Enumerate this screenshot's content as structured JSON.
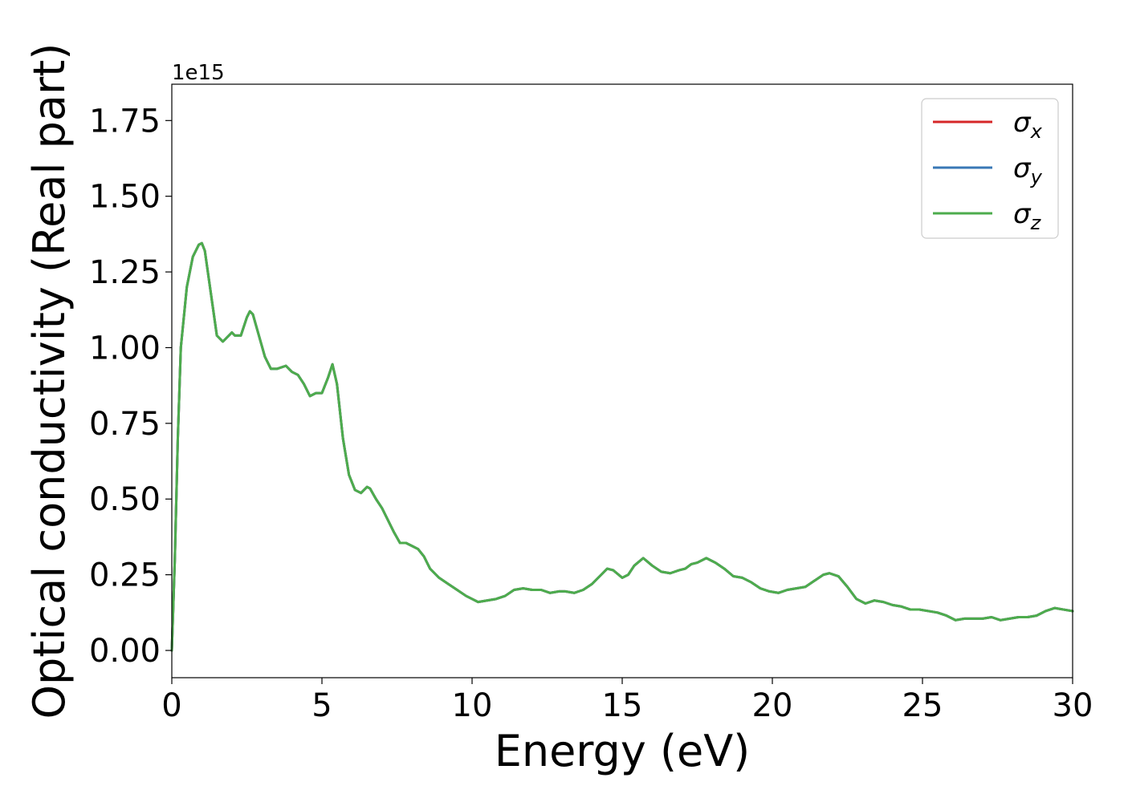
{
  "chart_data": {
    "type": "line",
    "title": "",
    "xlabel": "Energy (eV)",
    "ylabel": "Optical conductivity (Real part)",
    "y_offset_label": "1e15",
    "xlim": [
      0,
      30
    ],
    "ylim": [
      -0.09,
      1.87
    ],
    "xticks": [
      0,
      5,
      10,
      15,
      20,
      25,
      30
    ],
    "xtick_labels": [
      "0",
      "5",
      "10",
      "15",
      "20",
      "25",
      "30"
    ],
    "yticks": [
      0.0,
      0.25,
      0.5,
      0.75,
      1.0,
      1.25,
      1.5,
      1.75
    ],
    "ytick_labels": [
      "0.00",
      "0.25",
      "0.50",
      "0.75",
      "1.00",
      "1.25",
      "1.50",
      "1.75"
    ],
    "grid": false,
    "legend_position": "top-right",
    "legend": [
      {
        "base": "σ",
        "sub": "x",
        "color": "#d62728"
      },
      {
        "base": "σ",
        "sub": "y",
        "color": "#3a78b6"
      },
      {
        "base": "σ",
        "sub": "z",
        "color": "#4dac4d"
      }
    ],
    "x": [
      0,
      0.1,
      0.2,
      0.3,
      0.5,
      0.7,
      0.9,
      1.0,
      1.1,
      1.3,
      1.5,
      1.7,
      1.8,
      2.0,
      2.1,
      2.3,
      2.5,
      2.6,
      2.7,
      2.9,
      3.1,
      3.3,
      3.5,
      3.8,
      4.0,
      4.2,
      4.4,
      4.6,
      4.8,
      5.0,
      5.2,
      5.35,
      5.5,
      5.7,
      5.9,
      6.1,
      6.3,
      6.5,
      6.6,
      6.8,
      7.0,
      7.2,
      7.4,
      7.6,
      7.8,
      8.0,
      8.2,
      8.4,
      8.6,
      8.9,
      9.2,
      9.5,
      9.8,
      10.0,
      10.2,
      10.5,
      10.8,
      11.1,
      11.4,
      11.7,
      12.0,
      12.3,
      12.6,
      12.9,
      13.1,
      13.4,
      13.7,
      14.0,
      14.3,
      14.5,
      14.7,
      15.0,
      15.2,
      15.4,
      15.7,
      16.0,
      16.3,
      16.6,
      16.9,
      17.1,
      17.3,
      17.5,
      17.8,
      18.1,
      18.4,
      18.7,
      19.0,
      19.3,
      19.6,
      19.9,
      20.2,
      20.5,
      20.8,
      21.1,
      21.4,
      21.7,
      21.9,
      22.2,
      22.5,
      22.8,
      23.1,
      23.4,
      23.7,
      24.0,
      24.3,
      24.6,
      24.9,
      25.2,
      25.5,
      25.8,
      26.1,
      26.4,
      26.7,
      27.0,
      27.3,
      27.6,
      27.9,
      28.2,
      28.5,
      28.8,
      29.1,
      29.4,
      29.7,
      30.0
    ],
    "series": [
      {
        "name": "σx",
        "color": "#d62728",
        "values": [
          0.0,
          0.3,
          0.7,
          1.0,
          1.2,
          1.3,
          1.34,
          1.345,
          1.32,
          1.18,
          1.04,
          1.02,
          1.03,
          1.05,
          1.04,
          1.04,
          1.1,
          1.12,
          1.11,
          1.04,
          0.97,
          0.93,
          0.93,
          0.94,
          0.92,
          0.91,
          0.88,
          0.84,
          0.85,
          0.85,
          0.9,
          0.945,
          0.88,
          0.7,
          0.58,
          0.53,
          0.52,
          0.54,
          0.535,
          0.5,
          0.47,
          0.43,
          0.39,
          0.355,
          0.355,
          0.345,
          0.335,
          0.31,
          0.27,
          0.24,
          0.22,
          0.2,
          0.18,
          0.17,
          0.16,
          0.165,
          0.17,
          0.18,
          0.2,
          0.205,
          0.2,
          0.2,
          0.19,
          0.195,
          0.195,
          0.19,
          0.2,
          0.22,
          0.25,
          0.27,
          0.265,
          0.24,
          0.25,
          0.28,
          0.305,
          0.28,
          0.26,
          0.255,
          0.265,
          0.27,
          0.285,
          0.29,
          0.305,
          0.29,
          0.27,
          0.245,
          0.24,
          0.225,
          0.205,
          0.195,
          0.19,
          0.2,
          0.205,
          0.21,
          0.23,
          0.25,
          0.255,
          0.245,
          0.21,
          0.17,
          0.155,
          0.165,
          0.16,
          0.15,
          0.145,
          0.135,
          0.135,
          0.13,
          0.125,
          0.115,
          0.1,
          0.105,
          0.105,
          0.105,
          0.11,
          0.1,
          0.105,
          0.11,
          0.11,
          0.115,
          0.13,
          0.14,
          0.135,
          0.13
        ]
      },
      {
        "name": "σy",
        "color": "#3a78b6",
        "values": [
          0.0,
          0.3,
          0.7,
          1.0,
          1.2,
          1.3,
          1.34,
          1.345,
          1.32,
          1.18,
          1.04,
          1.02,
          1.03,
          1.05,
          1.04,
          1.04,
          1.1,
          1.12,
          1.11,
          1.04,
          0.97,
          0.93,
          0.93,
          0.94,
          0.92,
          0.91,
          0.88,
          0.84,
          0.85,
          0.85,
          0.9,
          0.945,
          0.88,
          0.7,
          0.58,
          0.53,
          0.52,
          0.54,
          0.535,
          0.5,
          0.47,
          0.43,
          0.39,
          0.355,
          0.355,
          0.345,
          0.335,
          0.31,
          0.27,
          0.24,
          0.22,
          0.2,
          0.18,
          0.17,
          0.16,
          0.165,
          0.17,
          0.18,
          0.2,
          0.205,
          0.2,
          0.2,
          0.19,
          0.195,
          0.195,
          0.19,
          0.2,
          0.22,
          0.25,
          0.27,
          0.265,
          0.24,
          0.25,
          0.28,
          0.305,
          0.28,
          0.26,
          0.255,
          0.265,
          0.27,
          0.285,
          0.29,
          0.305,
          0.29,
          0.27,
          0.245,
          0.24,
          0.225,
          0.205,
          0.195,
          0.19,
          0.2,
          0.205,
          0.21,
          0.23,
          0.25,
          0.255,
          0.245,
          0.21,
          0.17,
          0.155,
          0.165,
          0.16,
          0.15,
          0.145,
          0.135,
          0.135,
          0.13,
          0.125,
          0.115,
          0.1,
          0.105,
          0.105,
          0.105,
          0.11,
          0.1,
          0.105,
          0.11,
          0.11,
          0.115,
          0.13,
          0.14,
          0.135,
          0.13
        ]
      },
      {
        "name": "σz",
        "color": "#4dac4d",
        "values": [
          0.0,
          0.3,
          0.7,
          1.0,
          1.2,
          1.3,
          1.34,
          1.345,
          1.32,
          1.18,
          1.04,
          1.02,
          1.03,
          1.05,
          1.04,
          1.04,
          1.1,
          1.12,
          1.11,
          1.04,
          0.97,
          0.93,
          0.93,
          0.94,
          0.92,
          0.91,
          0.88,
          0.84,
          0.85,
          0.85,
          0.9,
          0.945,
          0.88,
          0.7,
          0.58,
          0.53,
          0.52,
          0.54,
          0.535,
          0.5,
          0.47,
          0.43,
          0.39,
          0.355,
          0.355,
          0.345,
          0.335,
          0.31,
          0.27,
          0.24,
          0.22,
          0.2,
          0.18,
          0.17,
          0.16,
          0.165,
          0.17,
          0.18,
          0.2,
          0.205,
          0.2,
          0.2,
          0.19,
          0.195,
          0.195,
          0.19,
          0.2,
          0.22,
          0.25,
          0.27,
          0.265,
          0.24,
          0.25,
          0.28,
          0.305,
          0.28,
          0.26,
          0.255,
          0.265,
          0.27,
          0.285,
          0.29,
          0.305,
          0.29,
          0.27,
          0.245,
          0.24,
          0.225,
          0.205,
          0.195,
          0.19,
          0.2,
          0.205,
          0.21,
          0.23,
          0.25,
          0.255,
          0.245,
          0.21,
          0.17,
          0.155,
          0.165,
          0.16,
          0.15,
          0.145,
          0.135,
          0.135,
          0.13,
          0.125,
          0.115,
          0.1,
          0.105,
          0.105,
          0.105,
          0.11,
          0.1,
          0.105,
          0.11,
          0.11,
          0.115,
          0.13,
          0.14,
          0.135,
          0.13
        ]
      }
    ]
  }
}
